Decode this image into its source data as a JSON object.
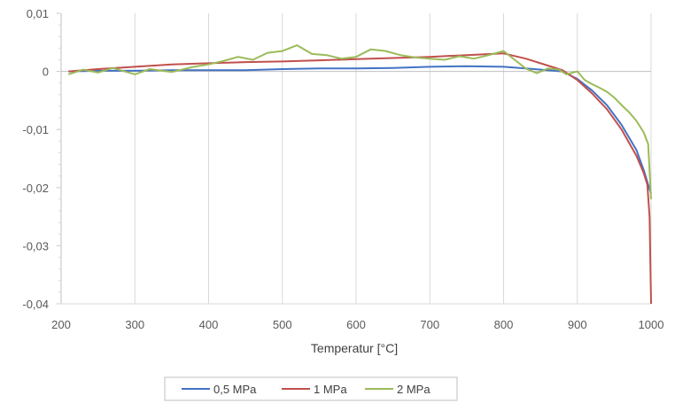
{
  "chart_data": {
    "type": "line",
    "title": "",
    "xlabel": "Temperatur [°C]",
    "ylabel": "",
    "xlim": [
      200,
      1000
    ],
    "ylim": [
      -0.04,
      0.01
    ],
    "x_ticks": [
      200,
      300,
      400,
      500,
      600,
      700,
      800,
      900,
      1000
    ],
    "y_ticks": [
      0.01,
      0,
      -0.01,
      -0.02,
      -0.03,
      -0.04
    ],
    "x_tick_labels": [
      "200",
      "300",
      "400",
      "500",
      "600",
      "700",
      "800",
      "900",
      "1000"
    ],
    "y_tick_labels": [
      "0,01",
      "0",
      "-0,01",
      "-0,02",
      "-0,03",
      "-0,04"
    ],
    "grid": "vertical",
    "legend_position": "bottom",
    "series": [
      {
        "name": "0,5 MPa",
        "color": "#4472C4",
        "points": [
          [
            210,
            0.0
          ],
          [
            250,
            0.0001
          ],
          [
            300,
            0.0001
          ],
          [
            350,
            0.0002
          ],
          [
            400,
            0.0002
          ],
          [
            450,
            0.0002
          ],
          [
            500,
            0.0004
          ],
          [
            550,
            0.0005
          ],
          [
            600,
            0.0005
          ],
          [
            650,
            0.0006
          ],
          [
            700,
            0.0008
          ],
          [
            750,
            0.0009
          ],
          [
            800,
            0.0008
          ],
          [
            830,
            0.0005
          ],
          [
            860,
            0.0002
          ],
          [
            880,
            0.0
          ],
          [
            900,
            -0.0013
          ],
          [
            920,
            -0.0033
          ],
          [
            940,
            -0.0058
          ],
          [
            960,
            -0.0092
          ],
          [
            980,
            -0.0135
          ],
          [
            990,
            -0.017
          ],
          [
            996,
            -0.0195
          ],
          [
            1000,
            -0.021
          ]
        ]
      },
      {
        "name": "1 MPa",
        "color": "#C0504D",
        "points": [
          [
            210,
            0.0
          ],
          [
            250,
            0.0004
          ],
          [
            300,
            0.0008
          ],
          [
            350,
            0.0012
          ],
          [
            400,
            0.0014
          ],
          [
            450,
            0.0016
          ],
          [
            500,
            0.0017
          ],
          [
            550,
            0.0019
          ],
          [
            600,
            0.0021
          ],
          [
            650,
            0.0023
          ],
          [
            700,
            0.0025
          ],
          [
            750,
            0.0028
          ],
          [
            800,
            0.0031
          ],
          [
            830,
            0.0022
          ],
          [
            860,
            0.001
          ],
          [
            880,
            0.0002
          ],
          [
            900,
            -0.0015
          ],
          [
            920,
            -0.0038
          ],
          [
            940,
            -0.0065
          ],
          [
            960,
            -0.01
          ],
          [
            980,
            -0.0145
          ],
          [
            990,
            -0.0175
          ],
          [
            995,
            -0.0195
          ],
          [
            998,
            -0.025
          ],
          [
            1000,
            -0.04
          ]
        ]
      },
      {
        "name": "2 MPa",
        "color": "#9BBB59",
        "points": [
          [
            210,
            -0.0005
          ],
          [
            230,
            0.0003
          ],
          [
            250,
            -0.0002
          ],
          [
            270,
            0.0006
          ],
          [
            300,
            -0.0005
          ],
          [
            320,
            0.0004
          ],
          [
            350,
            -0.0001
          ],
          [
            380,
            0.0008
          ],
          [
            400,
            0.0012
          ],
          [
            420,
            0.0018
          ],
          [
            440,
            0.0025
          ],
          [
            460,
            0.002
          ],
          [
            480,
            0.0032
          ],
          [
            500,
            0.0035
          ],
          [
            520,
            0.0045
          ],
          [
            540,
            0.003
          ],
          [
            560,
            0.0028
          ],
          [
            580,
            0.0022
          ],
          [
            600,
            0.0025
          ],
          [
            620,
            0.0038
          ],
          [
            640,
            0.0035
          ],
          [
            660,
            0.0028
          ],
          [
            680,
            0.0024
          ],
          [
            700,
            0.0022
          ],
          [
            720,
            0.002
          ],
          [
            740,
            0.0026
          ],
          [
            760,
            0.0022
          ],
          [
            780,
            0.0028
          ],
          [
            800,
            0.0035
          ],
          [
            815,
            0.002
          ],
          [
            830,
            0.0005
          ],
          [
            845,
            -0.0003
          ],
          [
            860,
            0.0005
          ],
          [
            875,
            0.0003
          ],
          [
            885,
            -0.0005
          ],
          [
            900,
            0.0
          ],
          [
            910,
            -0.0015
          ],
          [
            920,
            -0.0022
          ],
          [
            930,
            -0.0028
          ],
          [
            940,
            -0.0035
          ],
          [
            950,
            -0.0045
          ],
          [
            960,
            -0.0058
          ],
          [
            970,
            -0.007
          ],
          [
            980,
            -0.0085
          ],
          [
            990,
            -0.0105
          ],
          [
            996,
            -0.0125
          ],
          [
            1000,
            -0.022
          ]
        ]
      }
    ]
  }
}
